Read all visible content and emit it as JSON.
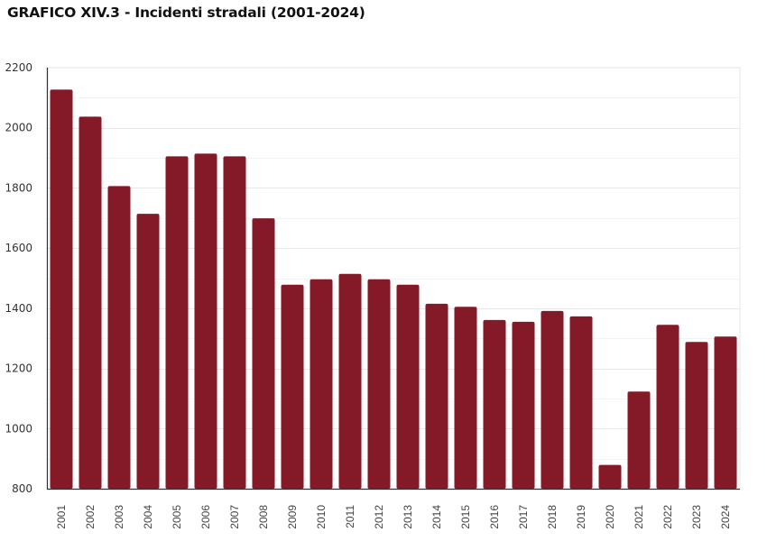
{
  "chart_data": {
    "type": "bar",
    "title": "GRAFICO XIV.3 - Incidenti stradali (2001-2024)",
    "xlabel": "",
    "ylabel": "",
    "categories": [
      "2001",
      "2002",
      "2003",
      "2004",
      "2005",
      "2006",
      "2007",
      "2008",
      "2009",
      "2010",
      "2011",
      "2012",
      "2013",
      "2014",
      "2015",
      "2016",
      "2017",
      "2018",
      "2019",
      "2020",
      "2021",
      "2022",
      "2023",
      "2024"
    ],
    "series": [
      {
        "name": "Incidenti stradali",
        "values": [
          2127,
          2037,
          1806,
          1714,
          1905,
          1914,
          1905,
          1699,
          1478,
          1496,
          1514,
          1496,
          1478,
          1415,
          1405,
          1361,
          1355,
          1391,
          1373,
          879,
          1123,
          1345,
          1288,
          1306
        ],
        "color": "#841928"
      }
    ],
    "ylim": [
      800,
      2200
    ],
    "yticks": [
      "800",
      "1000",
      "1200",
      "1400",
      "1600",
      "1800",
      "2000",
      "2200"
    ],
    "ytick_values": [
      800,
      1000,
      1200,
      1400,
      1600,
      1800,
      2000,
      2200
    ],
    "minor_grid_step": 100,
    "grid": true,
    "legend": "none"
  }
}
